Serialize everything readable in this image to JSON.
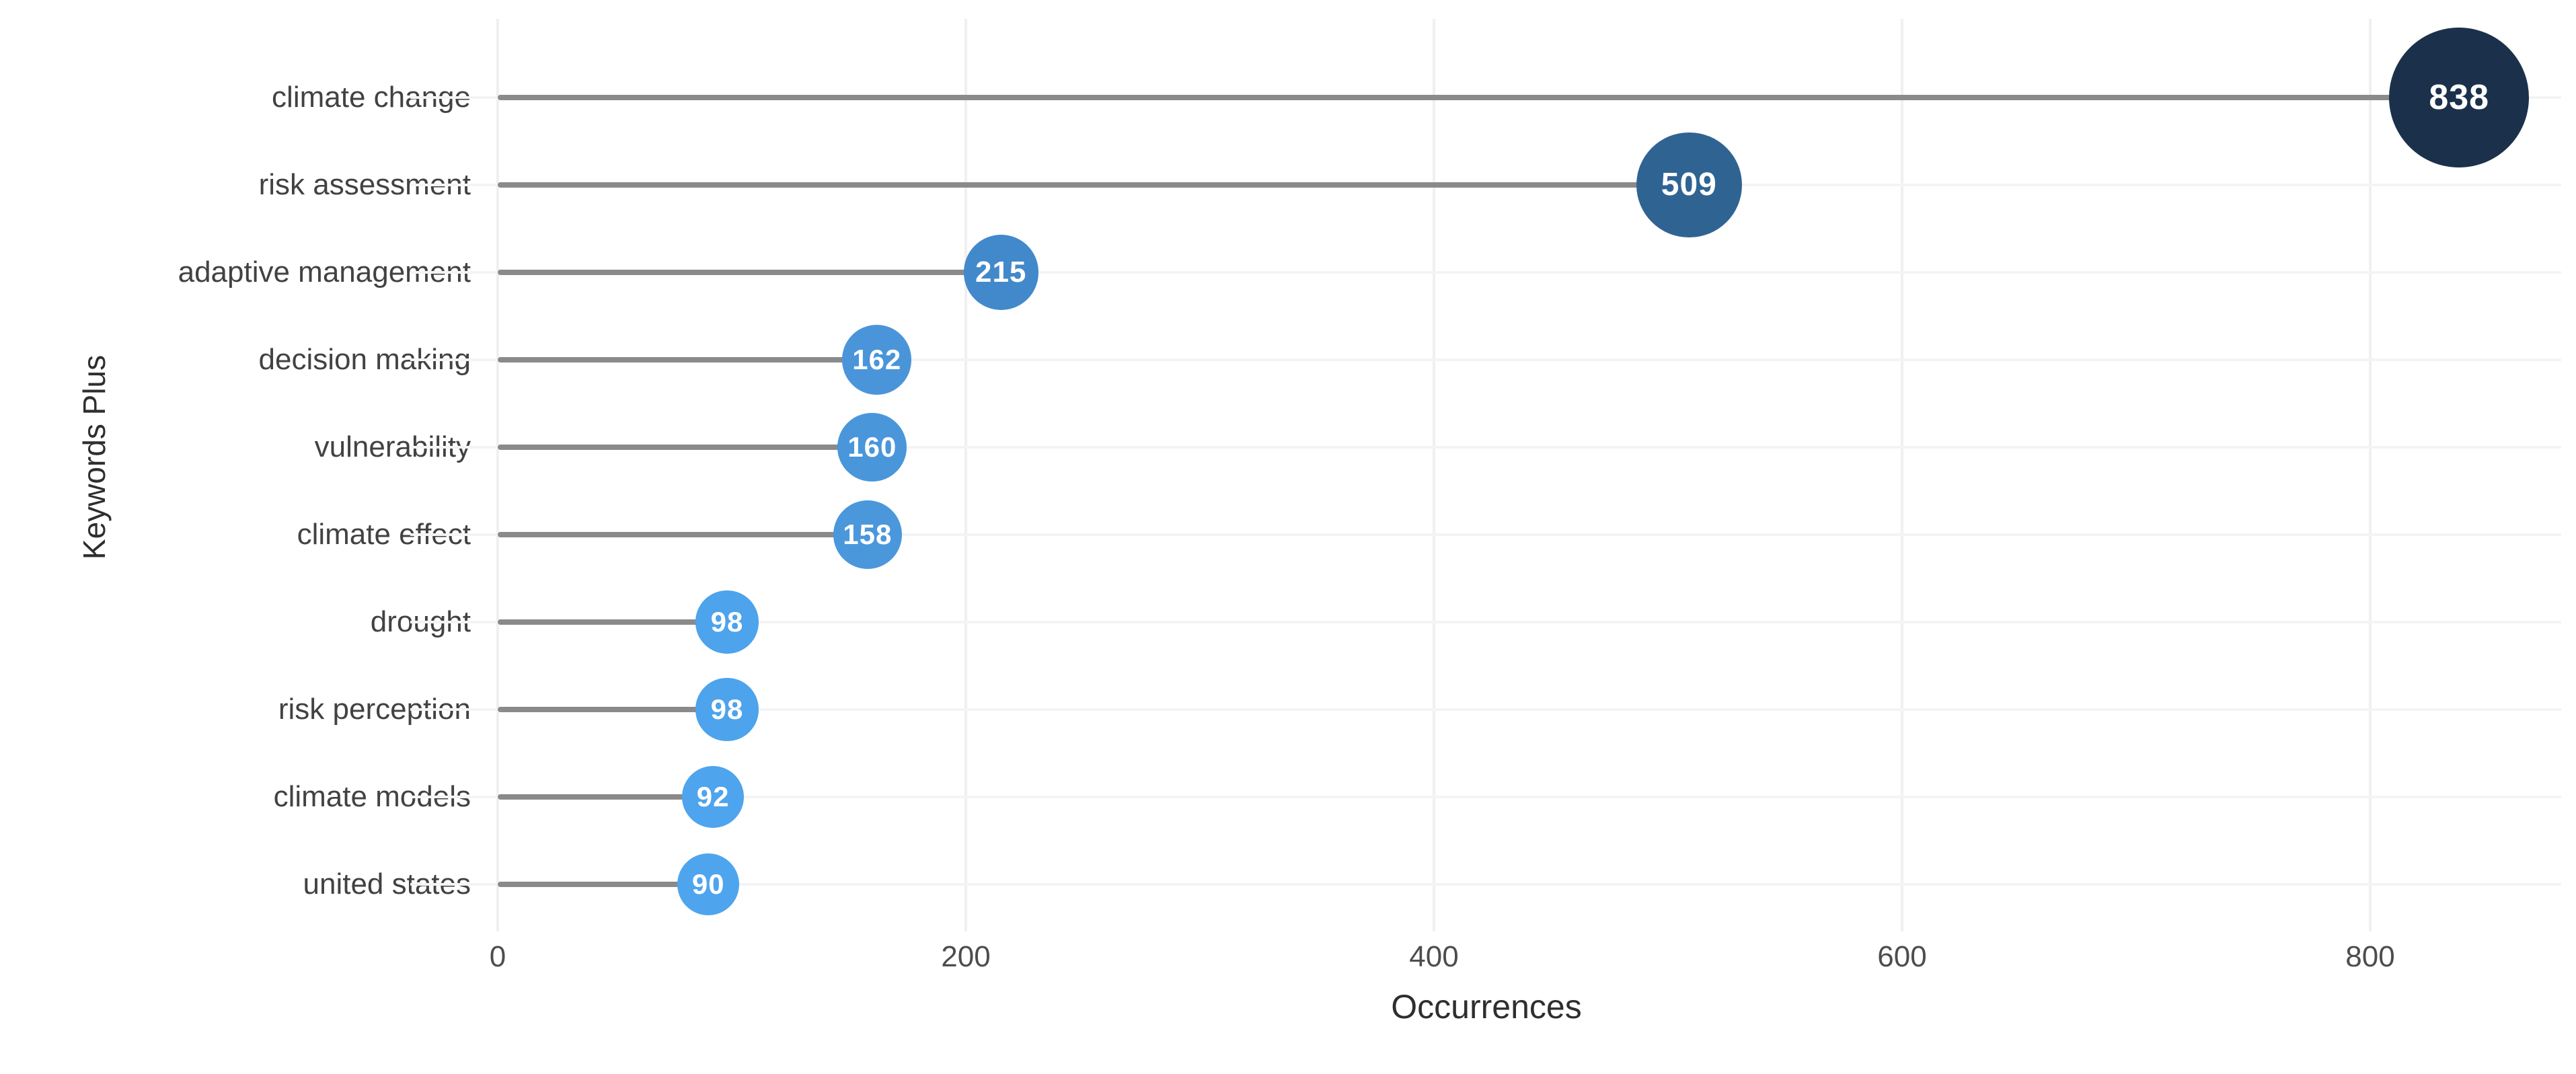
{
  "chart_data": {
    "type": "scatter",
    "variant": "lollipop-bubble",
    "title": "",
    "xlabel": "Occurrences",
    "ylabel": "Keywords Plus",
    "categories": [
      "climate change",
      "risk assessment",
      "adaptive management",
      "decision making",
      "vulnerability",
      "climate effect",
      "drought",
      "risk perception",
      "climate models",
      "united states"
    ],
    "values": [
      838,
      509,
      215,
      162,
      160,
      158,
      98,
      98,
      92,
      90
    ],
    "value_labels": [
      "838",
      "509",
      "215",
      "162",
      "160",
      "158",
      "98",
      "98",
      "92",
      "90"
    ],
    "bubble_colors": [
      "#1b314b",
      "#2f6492",
      "#4289cb",
      "#4a95da",
      "#4a96db",
      "#4b97dc",
      "#4da3ec",
      "#4da3ec",
      "#4ea4ed",
      "#4ea5ee"
    ],
    "x_ticks": [
      "0",
      "200",
      "400",
      "600",
      "800"
    ],
    "x_tick_values": [
      0,
      200,
      400,
      600,
      800
    ],
    "xlim": [
      0,
      880
    ],
    "grid": true,
    "legend": "none",
    "stem_color": "#8a8a8a",
    "gridline_color": "#f0f0f0",
    "bubble_label_color": "#ffffff",
    "axis_text_color": "#4d4d4d"
  }
}
